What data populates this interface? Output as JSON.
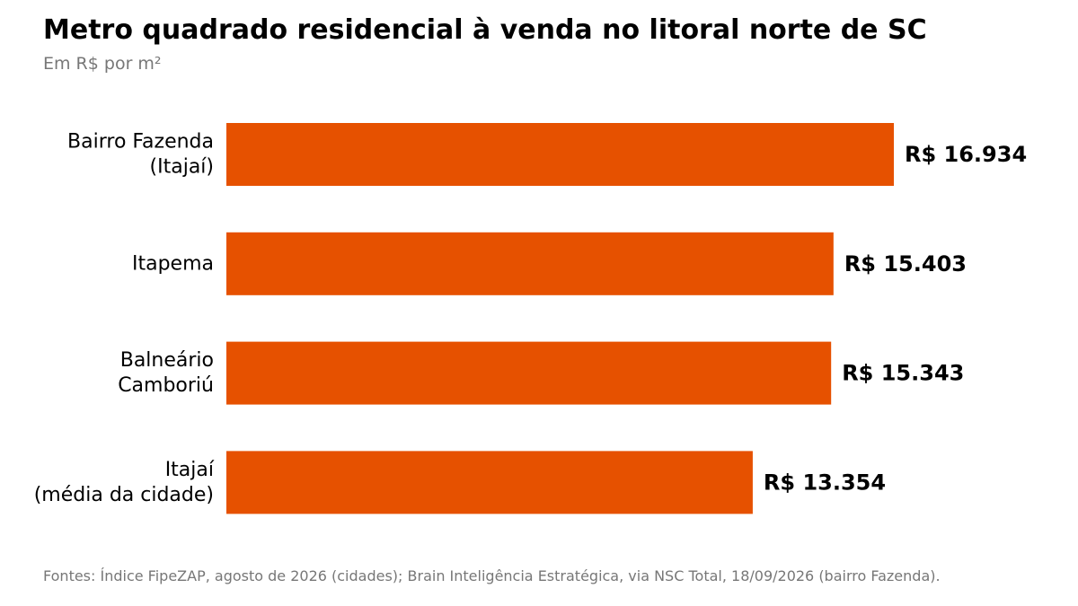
{
  "header": {
    "title": "Metro quadrado residencial à venda no litoral norte de SC",
    "subtitle": "Em R$ por m²"
  },
  "footer": {
    "source": "Fontes: Índice FipeZAP, agosto de 2026 (cidades); Brain Inteligência Estratégica, via NSC Total, 18/09/2026 (bairro Fazenda)."
  },
  "chart_data": {
    "type": "bar",
    "orientation": "horizontal",
    "title": "Metro quadrado residencial à venda no litoral norte de SC",
    "subtitle": "Em R$ por m²",
    "categories": [
      [
        "Bairro Fazenda",
        "(Itajaí)"
      ],
      [
        "Itapema"
      ],
      [
        "Balneário",
        "Camboriú"
      ],
      [
        "Itajaí",
        "(média da cidade)"
      ]
    ],
    "values": [
      16934,
      15403,
      15343,
      13354
    ],
    "value_labels": [
      "R$ 16.934",
      "R$ 15.403",
      "R$ 15.343",
      "R$ 13.354"
    ],
    "bar_color": "#E65100",
    "xlim": [
      0,
      16934
    ],
    "grid": false,
    "legend": "none"
  }
}
